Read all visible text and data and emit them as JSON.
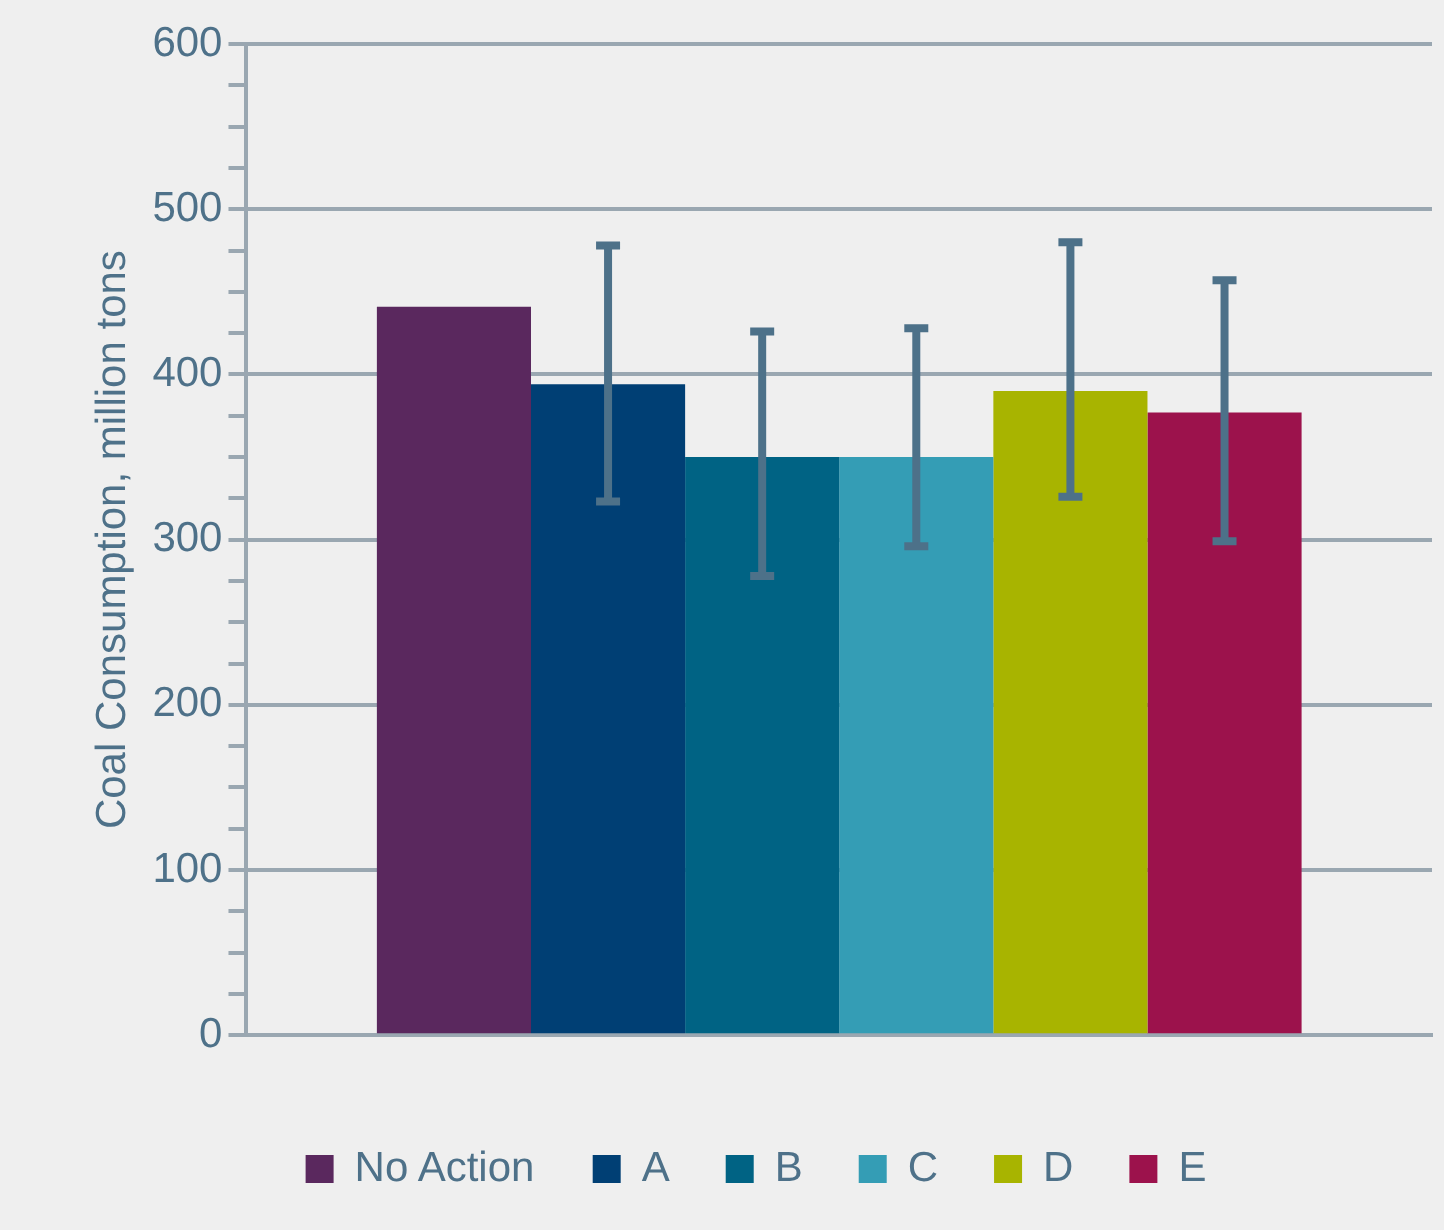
{
  "chart_data": {
    "type": "bar",
    "ylabel": "Coal Consumption, million tons",
    "categories": [
      null
    ],
    "series": [
      {
        "name": "No Action",
        "color": "#5a285e",
        "values": [
          441
        ]
      },
      {
        "name": "A",
        "color": "#003f74",
        "values": [
          394
        ],
        "errors": [
          [
            323,
            478
          ]
        ]
      },
      {
        "name": "B",
        "color": "#006384",
        "values": [
          350
        ],
        "errors": [
          [
            278,
            426
          ]
        ]
      },
      {
        "name": "C",
        "color": "#349db5",
        "values": [
          350
        ],
        "errors": [
          [
            296,
            428
          ]
        ]
      },
      {
        "name": "D",
        "color": "#a8b400",
        "values": [
          390
        ],
        "errors": [
          [
            326,
            480
          ]
        ]
      },
      {
        "name": "E",
        "color": "#9c124c",
        "values": [
          377
        ],
        "errors": [
          [
            299,
            457
          ]
        ]
      }
    ],
    "ylim": [
      0,
      600
    ],
    "yticks": [
      0,
      {
        "value": 25,
        "label": null
      },
      {
        "value": 50,
        "label": null
      },
      {
        "value": 75,
        "label": null
      },
      100,
      {
        "value": 125,
        "label": null
      },
      {
        "value": 150,
        "label": null
      },
      {
        "value": 175,
        "label": null
      },
      200,
      {
        "value": 225,
        "label": null
      },
      {
        "value": 250,
        "label": null
      },
      {
        "value": 275,
        "label": null
      },
      300,
      {
        "value": 325,
        "label": null
      },
      {
        "value": 350,
        "label": null
      },
      {
        "value": 375,
        "label": null
      },
      400,
      {
        "value": 425,
        "label": null
      },
      {
        "value": 450,
        "label": null
      },
      {
        "value": 475,
        "label": null
      },
      500,
      {
        "value": 525,
        "label": null
      },
      {
        "value": 550,
        "label": null
      },
      {
        "value": 575,
        "label": null
      },
      600
    ],
    "grid": "y",
    "legend": "bottom"
  }
}
